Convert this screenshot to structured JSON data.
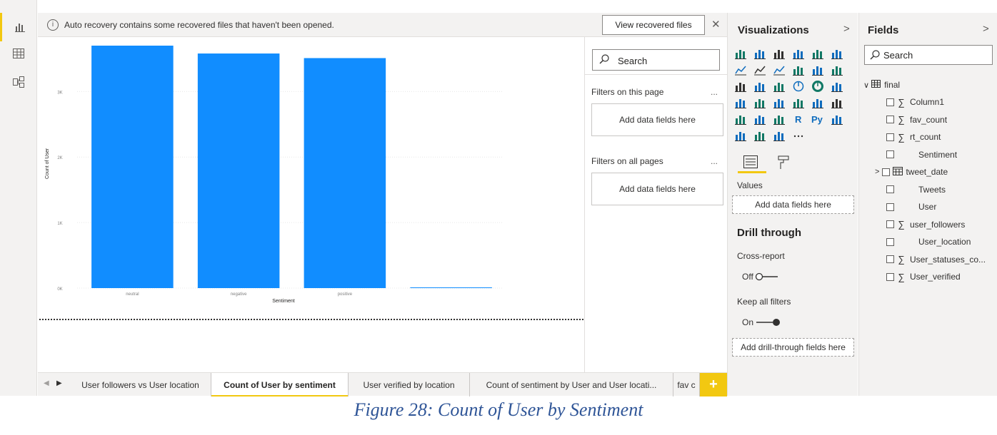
{
  "banner": {
    "message": "Auto recovery contains some recovered files that haven't been opened.",
    "view_button": "View recovered files",
    "info_icon": "info-icon",
    "close_icon": "close-icon"
  },
  "rail": {
    "items": [
      {
        "name": "report-view-icon",
        "active": true
      },
      {
        "name": "data-view-icon",
        "active": false
      },
      {
        "name": "model-view-icon",
        "active": false
      }
    ]
  },
  "chart_data": {
    "type": "bar",
    "categories": [
      "neutral",
      "negative",
      "positive",
      ""
    ],
    "values": [
      3700,
      3580,
      3510,
      10
    ],
    "xlabel": "Sentiment",
    "ylabel": "Count of User",
    "yticks": [
      "0K",
      "1K",
      "2K",
      "3K"
    ],
    "ylim": [
      0,
      3700
    ],
    "color": "#118dff",
    "grid": true
  },
  "filters": {
    "search_placeholder": "Search",
    "page_title": "Filters on this page",
    "page_drop": "Add data fields here",
    "all_title": "Filters on all pages",
    "all_drop": "Add data fields here",
    "more": "..."
  },
  "visualizations": {
    "title": "Visualizations",
    "chevron": ">",
    "values_label": "Values",
    "values_drop": "Add data fields here",
    "drill_title": "Drill through",
    "cross_report": "Cross-report",
    "cross_state": "Off",
    "keep_filters": "Keep all filters",
    "keep_state": "On",
    "drill_drop": "Add drill-through fields here",
    "icon_rows": [
      [
        "stacked-bar",
        "stacked-column",
        "clustered-bar",
        "clustered-column",
        "100-bar",
        "100-column"
      ],
      [
        "line",
        "area",
        "stacked-area",
        "line-column",
        "line-clustered",
        "ribbon"
      ],
      [
        "waterfall",
        "funnel",
        "scatter",
        "pie",
        "donut",
        "treemap"
      ],
      [
        "map",
        "filled-map",
        "gauge",
        "card",
        "multi-row-card",
        "kpi"
      ],
      [
        "slicer",
        "table",
        "matrix",
        "r-visual",
        "python-visual",
        "key-influencers"
      ],
      [
        "decomposition-tree",
        "qa",
        "smart-narrative",
        "more"
      ]
    ]
  },
  "fields": {
    "title": "Fields",
    "chevron": ">",
    "search_placeholder": "Search",
    "table": "final",
    "items": [
      {
        "label": "Column1",
        "sigma": true
      },
      {
        "label": "fav_count",
        "sigma": true
      },
      {
        "label": "rt_count",
        "sigma": true
      },
      {
        "label": "Sentiment",
        "sigma": false
      },
      {
        "label": "tweet_date",
        "sigma": false,
        "date": true
      },
      {
        "label": "Tweets",
        "sigma": false
      },
      {
        "label": "User",
        "sigma": false
      },
      {
        "label": "user_followers",
        "sigma": true
      },
      {
        "label": "User_location",
        "sigma": false
      },
      {
        "label": "User_statuses_co...",
        "sigma": true
      },
      {
        "label": "User_verified",
        "sigma": true
      }
    ]
  },
  "tabs": {
    "items": [
      {
        "label": "User followers vs User location",
        "active": false
      },
      {
        "label": "Count of User by sentiment",
        "active": true
      },
      {
        "label": "User verified by location",
        "active": false
      },
      {
        "label": "Count of sentiment by User and User locati...",
        "active": false
      },
      {
        "label": "fav c",
        "active": false
      }
    ],
    "add": "+"
  },
  "caption": "Figure 28: Count of User by Sentiment"
}
